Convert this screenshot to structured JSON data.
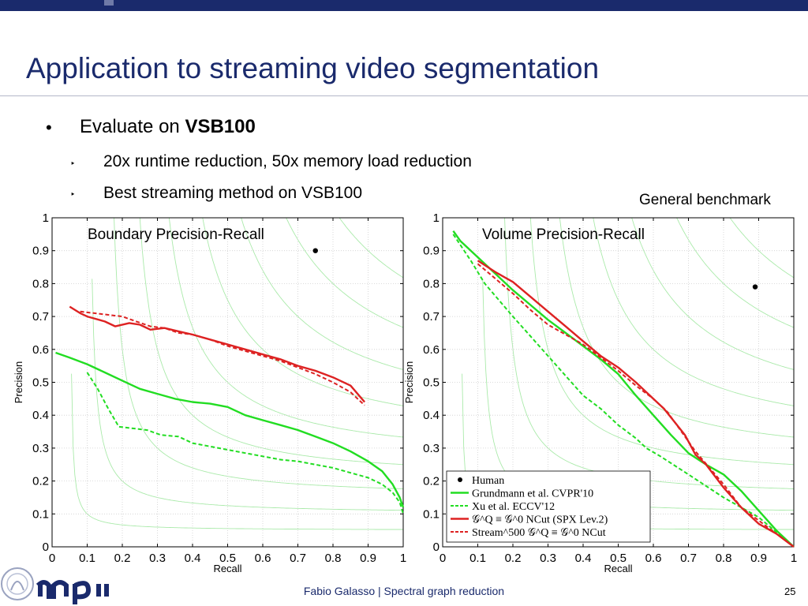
{
  "slide": {
    "title": "Application to streaming video segmentation",
    "bullet_char": "•",
    "sub_bullet_char": "‣",
    "bullet1_prefix": "Evaluate on ",
    "bullet1_bold": "VSB100",
    "bullet2": "20x runtime reduction, 50x memory load reduction",
    "bullet3": "Best streaming method on VSB100",
    "right_note": "General benchmark"
  },
  "footer": {
    "text": "Fabio Galasso | Spectral graph reduction",
    "page": "25"
  },
  "colors": {
    "title": "#1a2a6c",
    "green": "#22dd22",
    "red": "#dd2222",
    "iso": "#aaeaaa"
  },
  "chart_data": [
    {
      "type": "line",
      "title": "Boundary Precision-Recall",
      "xlabel": "Recall",
      "ylabel": "Precision",
      "xlim": [
        0,
        1
      ],
      "ylim": [
        0,
        1
      ],
      "xticks": [
        "0",
        "0.1",
        "0.2",
        "0.3",
        "0.4",
        "0.5",
        "0.6",
        "0.7",
        "0.8",
        "0.9",
        "1"
      ],
      "yticks": [
        "0",
        "0.1",
        "0.2",
        "0.3",
        "0.4",
        "0.5",
        "0.6",
        "0.7",
        "0.8",
        "0.9",
        "1"
      ],
      "grid": true,
      "human": {
        "x": 0.75,
        "y": 0.9
      },
      "series": [
        {
          "style": "green-solid",
          "points": [
            [
              0.01,
              0.59
            ],
            [
              0.05,
              0.575
            ],
            [
              0.1,
              0.555
            ],
            [
              0.15,
              0.53
            ],
            [
              0.2,
              0.505
            ],
            [
              0.25,
              0.48
            ],
            [
              0.3,
              0.465
            ],
            [
              0.35,
              0.45
            ],
            [
              0.4,
              0.44
            ],
            [
              0.45,
              0.435
            ],
            [
              0.5,
              0.425
            ],
            [
              0.55,
              0.4
            ],
            [
              0.6,
              0.385
            ],
            [
              0.65,
              0.37
            ],
            [
              0.7,
              0.355
            ],
            [
              0.75,
              0.335
            ],
            [
              0.8,
              0.315
            ],
            [
              0.85,
              0.29
            ],
            [
              0.9,
              0.26
            ],
            [
              0.94,
              0.23
            ],
            [
              0.97,
              0.19
            ],
            [
              0.99,
              0.15
            ],
            [
              1.0,
              0.12
            ]
          ]
        },
        {
          "style": "green-dashed",
          "points": [
            [
              0.1,
              0.53
            ],
            [
              0.13,
              0.48
            ],
            [
              0.16,
              0.42
            ],
            [
              0.19,
              0.365
            ],
            [
              0.23,
              0.36
            ],
            [
              0.27,
              0.355
            ],
            [
              0.31,
              0.34
            ],
            [
              0.36,
              0.335
            ],
            [
              0.4,
              0.315
            ],
            [
              0.45,
              0.305
            ],
            [
              0.5,
              0.295
            ],
            [
              0.55,
              0.285
            ],
            [
              0.6,
              0.275
            ],
            [
              0.65,
              0.265
            ],
            [
              0.7,
              0.26
            ],
            [
              0.75,
              0.25
            ],
            [
              0.8,
              0.24
            ],
            [
              0.85,
              0.225
            ],
            [
              0.9,
              0.21
            ],
            [
              0.94,
              0.19
            ],
            [
              0.97,
              0.165
            ],
            [
              0.99,
              0.135
            ],
            [
              1.0,
              0.1
            ]
          ]
        },
        {
          "style": "red-solid",
          "points": [
            [
              0.05,
              0.73
            ],
            [
              0.08,
              0.71
            ],
            [
              0.1,
              0.7
            ],
            [
              0.15,
              0.685
            ],
            [
              0.18,
              0.67
            ],
            [
              0.22,
              0.68
            ],
            [
              0.25,
              0.675
            ],
            [
              0.28,
              0.66
            ],
            [
              0.32,
              0.665
            ],
            [
              0.36,
              0.655
            ],
            [
              0.4,
              0.645
            ],
            [
              0.45,
              0.63
            ],
            [
              0.5,
              0.615
            ],
            [
              0.55,
              0.6
            ],
            [
              0.6,
              0.585
            ],
            [
              0.65,
              0.57
            ],
            [
              0.7,
              0.55
            ],
            [
              0.75,
              0.535
            ],
            [
              0.8,
              0.515
            ],
            [
              0.85,
              0.49
            ],
            [
              0.89,
              0.44
            ]
          ]
        },
        {
          "style": "red-dashed",
          "points": [
            [
              0.08,
              0.715
            ],
            [
              0.12,
              0.71
            ],
            [
              0.16,
              0.705
            ],
            [
              0.2,
              0.7
            ],
            [
              0.24,
              0.685
            ],
            [
              0.28,
              0.67
            ],
            [
              0.32,
              0.665
            ],
            [
              0.36,
              0.65
            ],
            [
              0.4,
              0.645
            ],
            [
              0.45,
              0.63
            ],
            [
              0.5,
              0.61
            ],
            [
              0.55,
              0.595
            ],
            [
              0.6,
              0.58
            ],
            [
              0.65,
              0.565
            ],
            [
              0.7,
              0.545
            ],
            [
              0.75,
              0.525
            ],
            [
              0.8,
              0.5
            ],
            [
              0.85,
              0.47
            ],
            [
              0.89,
              0.43
            ]
          ]
        }
      ]
    },
    {
      "type": "line",
      "title": "Volume Precision-Recall",
      "xlabel": "Recall",
      "ylabel": "Precision",
      "xlim": [
        0,
        1
      ],
      "ylim": [
        0,
        1
      ],
      "xticks": [
        "0",
        "0.1",
        "0.2",
        "0.3",
        "0.4",
        "0.5",
        "0.6",
        "0.7",
        "0.8",
        "0.9",
        "1"
      ],
      "yticks": [
        "0",
        "0.1",
        "0.2",
        "0.3",
        "0.4",
        "0.5",
        "0.6",
        "0.7",
        "0.8",
        "0.9",
        "1"
      ],
      "grid": true,
      "legend_position": "bottom-left",
      "human": {
        "x": 0.89,
        "y": 0.79
      },
      "series": [
        {
          "name": "Human",
          "style": "dot",
          "points": []
        },
        {
          "name": "Grundmann et al. CVPR'10",
          "style": "green-solid",
          "points": [
            [
              0.03,
              0.96
            ],
            [
              0.05,
              0.93
            ],
            [
              0.1,
              0.88
            ],
            [
              0.15,
              0.83
            ],
            [
              0.2,
              0.78
            ],
            [
              0.25,
              0.735
            ],
            [
              0.3,
              0.69
            ],
            [
              0.35,
              0.65
            ],
            [
              0.4,
              0.61
            ],
            [
              0.45,
              0.57
            ],
            [
              0.5,
              0.525
            ],
            [
              0.55,
              0.46
            ],
            [
              0.6,
              0.4
            ],
            [
              0.65,
              0.34
            ],
            [
              0.7,
              0.285
            ],
            [
              0.75,
              0.25
            ],
            [
              0.8,
              0.22
            ],
            [
              0.85,
              0.17
            ],
            [
              0.9,
              0.11
            ],
            [
              0.95,
              0.05
            ],
            [
              1.0,
              0.0
            ]
          ]
        },
        {
          "name": "Xu et al. ECCV'12",
          "style": "green-dashed",
          "points": [
            [
              0.03,
              0.95
            ],
            [
              0.08,
              0.87
            ],
            [
              0.12,
              0.8
            ],
            [
              0.2,
              0.7
            ],
            [
              0.25,
              0.64
            ],
            [
              0.3,
              0.58
            ],
            [
              0.35,
              0.52
            ],
            [
              0.4,
              0.46
            ],
            [
              0.45,
              0.42
            ],
            [
              0.5,
              0.37
            ],
            [
              0.55,
              0.33
            ],
            [
              0.58,
              0.3
            ],
            [
              0.62,
              0.275
            ],
            [
              0.7,
              0.22
            ],
            [
              0.8,
              0.15
            ],
            [
              0.9,
              0.09
            ],
            [
              1.0,
              0.0
            ]
          ]
        },
        {
          "name": "𝒢^Q ≡ 𝒢^0 NCut (SPX Lev.2)",
          "style": "red-solid",
          "points": [
            [
              0.1,
              0.87
            ],
            [
              0.15,
              0.835
            ],
            [
              0.2,
              0.805
            ],
            [
              0.25,
              0.76
            ],
            [
              0.3,
              0.715
            ],
            [
              0.35,
              0.67
            ],
            [
              0.4,
              0.625
            ],
            [
              0.45,
              0.58
            ],
            [
              0.5,
              0.545
            ],
            [
              0.55,
              0.5
            ],
            [
              0.6,
              0.45
            ],
            [
              0.63,
              0.42
            ],
            [
              0.66,
              0.38
            ],
            [
              0.69,
              0.34
            ],
            [
              0.72,
              0.28
            ],
            [
              0.75,
              0.25
            ],
            [
              0.8,
              0.18
            ],
            [
              0.85,
              0.12
            ],
            [
              0.9,
              0.07
            ],
            [
              0.95,
              0.04
            ],
            [
              1.0,
              0.0
            ]
          ]
        },
        {
          "name": "Stream^500 𝒢^Q ≡ 𝒢^0 NCut",
          "style": "red-dashed",
          "points": [
            [
              0.1,
              0.86
            ],
            [
              0.15,
              0.815
            ],
            [
              0.2,
              0.77
            ],
            [
              0.25,
              0.72
            ],
            [
              0.3,
              0.675
            ],
            [
              0.35,
              0.645
            ],
            [
              0.4,
              0.615
            ],
            [
              0.45,
              0.575
            ],
            [
              0.5,
              0.535
            ],
            [
              0.55,
              0.49
            ],
            [
              0.6,
              0.45
            ],
            [
              0.64,
              0.41
            ],
            [
              0.68,
              0.35
            ],
            [
              0.72,
              0.29
            ],
            [
              0.76,
              0.24
            ],
            [
              0.8,
              0.19
            ],
            [
              0.85,
              0.12
            ],
            [
              0.9,
              0.08
            ],
            [
              0.95,
              0.04
            ],
            [
              1.0,
              0.0
            ]
          ]
        }
      ]
    }
  ]
}
